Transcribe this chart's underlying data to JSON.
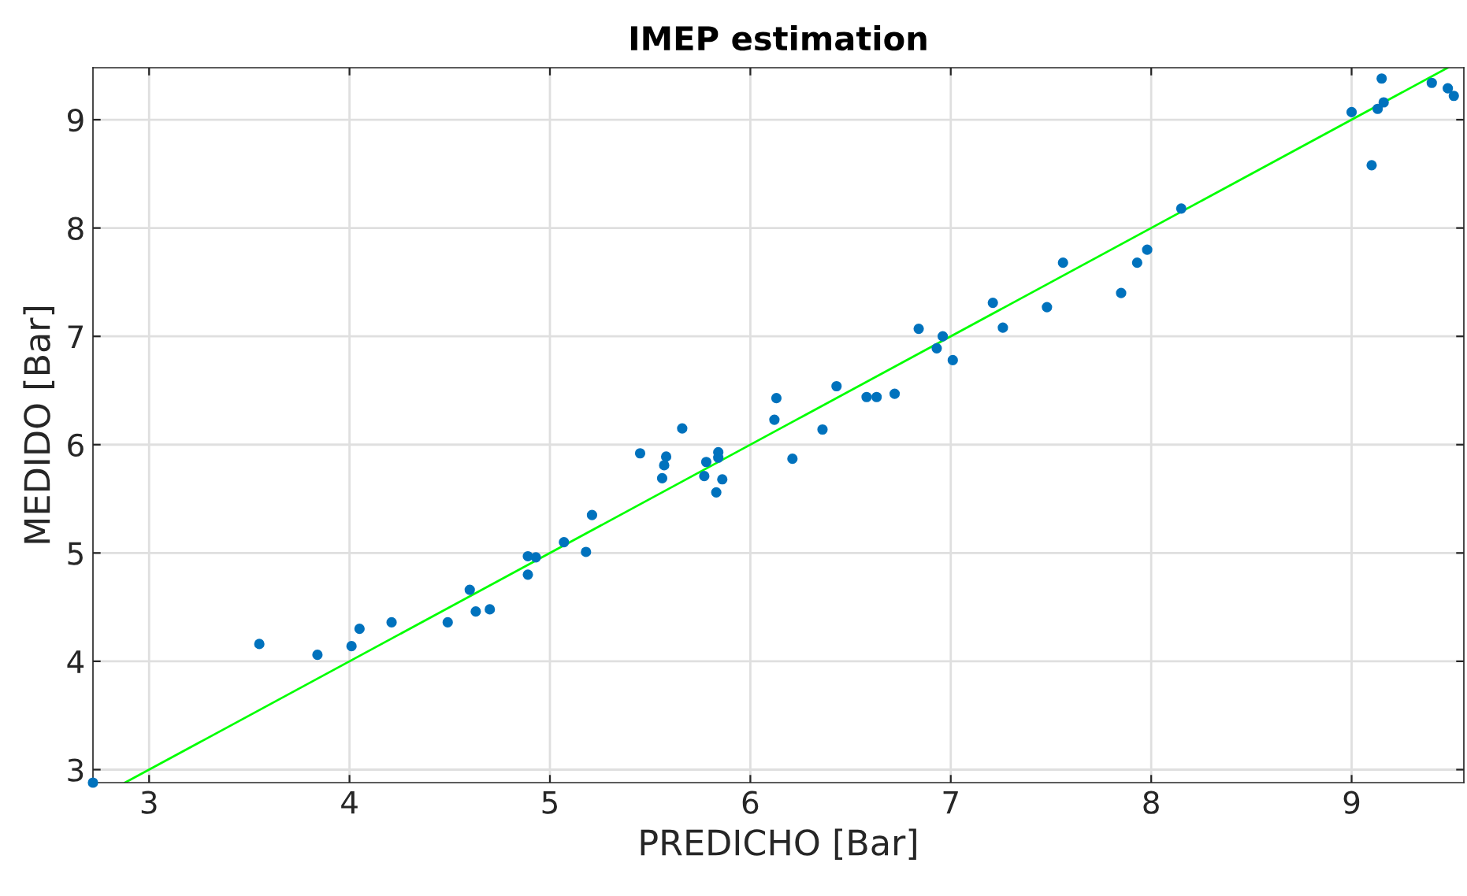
{
  "chart_data": {
    "type": "scatter",
    "title": "IMEP estimation",
    "xlabel": "PREDICHO [Bar]",
    "ylabel": "MEDIDO [Bar]",
    "xlim": [
      2.72,
      9.56
    ],
    "ylim": [
      2.88,
      9.48
    ],
    "xticks": [
      3,
      4,
      5,
      6,
      7,
      8,
      9
    ],
    "yticks": [
      3,
      4,
      5,
      6,
      7,
      8,
      9
    ],
    "grid": true,
    "series": [
      {
        "marker": "circle",
        "color": "#0072bd",
        "x": [
          2.72,
          3.55,
          3.84,
          4.01,
          4.05,
          4.21,
          4.49,
          4.6,
          4.63,
          4.7,
          4.89,
          4.89,
          4.93,
          5.07,
          5.18,
          5.21,
          5.45,
          5.56,
          5.57,
          5.58,
          5.66,
          5.77,
          5.78,
          5.83,
          5.84,
          5.84,
          5.86,
          6.12,
          6.13,
          6.21,
          6.36,
          6.43,
          6.58,
          6.63,
          6.72,
          6.84,
          6.93,
          6.96,
          7.01,
          7.21,
          7.26,
          7.48,
          7.56,
          7.85,
          7.93,
          7.98,
          8.15,
          9.0,
          9.1,
          9.13,
          9.15,
          9.16,
          9.4,
          9.48,
          9.51
        ],
        "values": [
          2.88,
          4.16,
          4.06,
          4.14,
          4.3,
          4.36,
          4.36,
          4.66,
          4.46,
          4.48,
          4.97,
          4.8,
          4.96,
          5.1,
          5.01,
          5.35,
          5.92,
          5.69,
          5.81,
          5.89,
          6.15,
          5.71,
          5.84,
          5.56,
          5.88,
          5.93,
          5.68,
          6.23,
          6.43,
          5.87,
          6.14,
          6.54,
          6.44,
          6.44,
          6.47,
          7.07,
          6.89,
          7.0,
          6.78,
          7.31,
          7.08,
          7.27,
          7.68,
          7.4,
          7.68,
          7.8,
          8.18,
          9.07,
          8.58,
          9.1,
          9.38,
          9.16,
          9.34,
          9.29,
          9.22
        ]
      },
      {
        "type": "line",
        "marker": "none",
        "color": "#00ff00",
        "x": [
          2.88,
          9.48
        ],
        "values": [
          2.88,
          9.48
        ]
      }
    ]
  }
}
